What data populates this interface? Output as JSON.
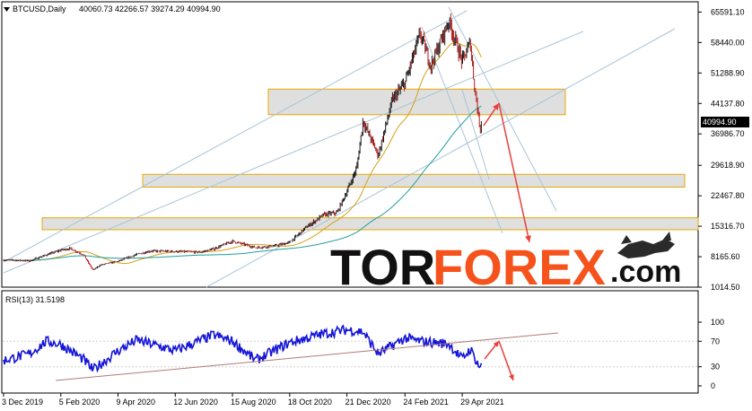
{
  "header": {
    "symbol": "BTCUSD,Daily",
    "ohlc": "40060.73 42266.57 39274.29 40994.90"
  },
  "price_badge": "40994.90",
  "rsi_label": "RSI(13) 31.5198",
  "logo": {
    "part1": "TOR",
    "part2": "FOREX",
    "part3": ".com"
  },
  "colors": {
    "candle_up": "#1a1a1a",
    "candle_down": "#b21b1b",
    "ma_fast": "#d4a017",
    "ma_slow": "#1f9e9e",
    "trendline": "#a9c4d6",
    "zone_fill": "#d9d9d9",
    "zone_border": "#e8a800",
    "arrow": "#e8403a",
    "rsi_line": "#1414d8",
    "rsi_trend": "#b07a7a"
  },
  "chart_data": [
    {
      "type": "candlestick",
      "title": "BTCUSD,Daily",
      "y_ticks": [
        "65591.10",
        "58440.00",
        "51288.90",
        "44137.80",
        "36986.70",
        "29618.90",
        "22467.80",
        "15316.70",
        "8165.60",
        "1014.50"
      ],
      "x_ticks": [
        "3 Dec 2019",
        "5 Feb 2020",
        "9 Apr 2020",
        "12 Jun 2020",
        "15 Aug 2020",
        "18 Oct 2020",
        "21 Dec 2020",
        "24 Feb 2021",
        "29 Apr 2021"
      ],
      "ylim": [
        1014.5,
        68000
      ],
      "series": [
        {
          "values": [
            {
              "x": "3 Dec 2019",
              "y": 7400
            },
            {
              "x": "1 Jan 2020",
              "y": 7200
            },
            {
              "x": "20 Jan 2020",
              "y": 8600
            },
            {
              "x": "5 Feb 2020",
              "y": 9700
            },
            {
              "x": "15 Feb 2020",
              "y": 10100
            },
            {
              "x": "1 Mar 2020",
              "y": 8700
            },
            {
              "x": "12 Mar 2020",
              "y": 5000
            },
            {
              "x": "20 Mar 2020",
              "y": 6200
            },
            {
              "x": "9 Apr 2020",
              "y": 7100
            },
            {
              "x": "30 Apr 2020",
              "y": 8700
            },
            {
              "x": "15 May 2020",
              "y": 9500
            },
            {
              "x": "12 Jun 2020",
              "y": 9400
            },
            {
              "x": "10 Jul 2020",
              "y": 9200
            },
            {
              "x": "25 Jul 2020",
              "y": 10000
            },
            {
              "x": "15 Aug 2020",
              "y": 11800
            },
            {
              "x": "10 Sep 2020",
              "y": 10300
            },
            {
              "x": "1 Oct 2020",
              "y": 10700
            },
            {
              "x": "18 Oct 2020",
              "y": 11500
            },
            {
              "x": "5 Nov 2020",
              "y": 15000
            },
            {
              "x": "25 Nov 2020",
              "y": 18000
            },
            {
              "x": "10 Dec 2020",
              "y": 18500
            },
            {
              "x": "21 Dec 2020",
              "y": 23500
            },
            {
              "x": "1 Jan 2021",
              "y": 29000
            },
            {
              "x": "8 Jan 2021",
              "y": 40000
            },
            {
              "x": "25 Jan 2021",
              "y": 32000
            },
            {
              "x": "10 Feb 2021",
              "y": 45000
            },
            {
              "x": "24 Feb 2021",
              "y": 49000
            },
            {
              "x": "13 Mar 2021",
              "y": 60500
            },
            {
              "x": "25 Mar 2021",
              "y": 53000
            },
            {
              "x": "14 Apr 2021",
              "y": 63500
            },
            {
              "x": "29 Apr 2021",
              "y": 54000
            },
            {
              "x": "8 May 2021",
              "y": 58500
            },
            {
              "x": "12 May 2021",
              "y": 49500
            },
            {
              "x": "19 May 2021",
              "y": 38000
            },
            {
              "x": "21 May 2021",
              "y": 40994.9
            }
          ]
        }
      ]
    },
    {
      "type": "line",
      "title": "RSI(13) 31.5198",
      "y_ticks": [
        "100",
        "70",
        "30",
        "0"
      ],
      "ylim": [
        0,
        100
      ],
      "series": [
        {
          "values": [
            {
              "x": "3 Dec 2019",
              "y": 40
            },
            {
              "x": "1 Jan 2020",
              "y": 50
            },
            {
              "x": "20 Jan 2020",
              "y": 70
            },
            {
              "x": "5 Feb 2020",
              "y": 65
            },
            {
              "x": "1 Mar 2020",
              "y": 42
            },
            {
              "x": "12 Mar 2020",
              "y": 25
            },
            {
              "x": "9 Apr 2020",
              "y": 55
            },
            {
              "x": "30 Apr 2020",
              "y": 72
            },
            {
              "x": "12 Jun 2020",
              "y": 55
            },
            {
              "x": "25 Jul 2020",
              "y": 80
            },
            {
              "x": "15 Aug 2020",
              "y": 70
            },
            {
              "x": "10 Sep 2020",
              "y": 40
            },
            {
              "x": "18 Oct 2020",
              "y": 68
            },
            {
              "x": "25 Nov 2020",
              "y": 82
            },
            {
              "x": "21 Dec 2020",
              "y": 88
            },
            {
              "x": "8 Jan 2021",
              "y": 85
            },
            {
              "x": "25 Jan 2021",
              "y": 50
            },
            {
              "x": "24 Feb 2021",
              "y": 75
            },
            {
              "x": "13 Mar 2021",
              "y": 70
            },
            {
              "x": "14 Apr 2021",
              "y": 66
            },
            {
              "x": "29 Apr 2021",
              "y": 42
            },
            {
              "x": "8 May 2021",
              "y": 58
            },
            {
              "x": "19 May 2021",
              "y": 28
            },
            {
              "x": "21 May 2021",
              "y": 31.5
            }
          ]
        }
      ]
    }
  ]
}
